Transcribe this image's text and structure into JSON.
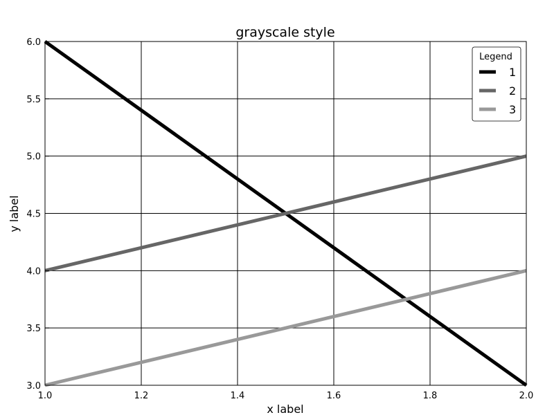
{
  "chart_data": {
    "type": "line",
    "title": "grayscale style",
    "xlabel": "x label",
    "ylabel": "y label",
    "xlim": [
      1.0,
      2.0
    ],
    "ylim": [
      3.0,
      6.0
    ],
    "xticks": [
      "1.0",
      "1.2",
      "1.4",
      "1.6",
      "1.8",
      "2.0"
    ],
    "yticks": [
      "3.0",
      "3.5",
      "4.0",
      "4.5",
      "5.0",
      "5.5",
      "6.0"
    ],
    "grid": true,
    "legend": {
      "title": "Legend",
      "placement": "top-right"
    },
    "series": [
      {
        "name": "1",
        "color": "#000000",
        "x": [
          1.0,
          2.0
        ],
        "y": [
          6.0,
          3.0
        ]
      },
      {
        "name": "2",
        "color": "#666666",
        "x": [
          1.0,
          2.0
        ],
        "y": [
          4.0,
          5.0
        ]
      },
      {
        "name": "3",
        "color": "#999999",
        "x": [
          1.0,
          2.0
        ],
        "y": [
          3.0,
          4.0
        ]
      }
    ]
  }
}
